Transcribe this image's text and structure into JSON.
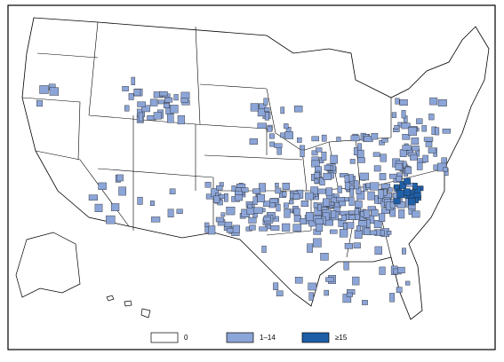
{
  "legend": {
    "items": [
      {
        "label": "0",
        "color": "#ffffff"
      },
      {
        "label": "1–14",
        "color": "#8ca5d8"
      },
      {
        "label": "≥15",
        "color": "#1f5fa8"
      }
    ]
  }
}
